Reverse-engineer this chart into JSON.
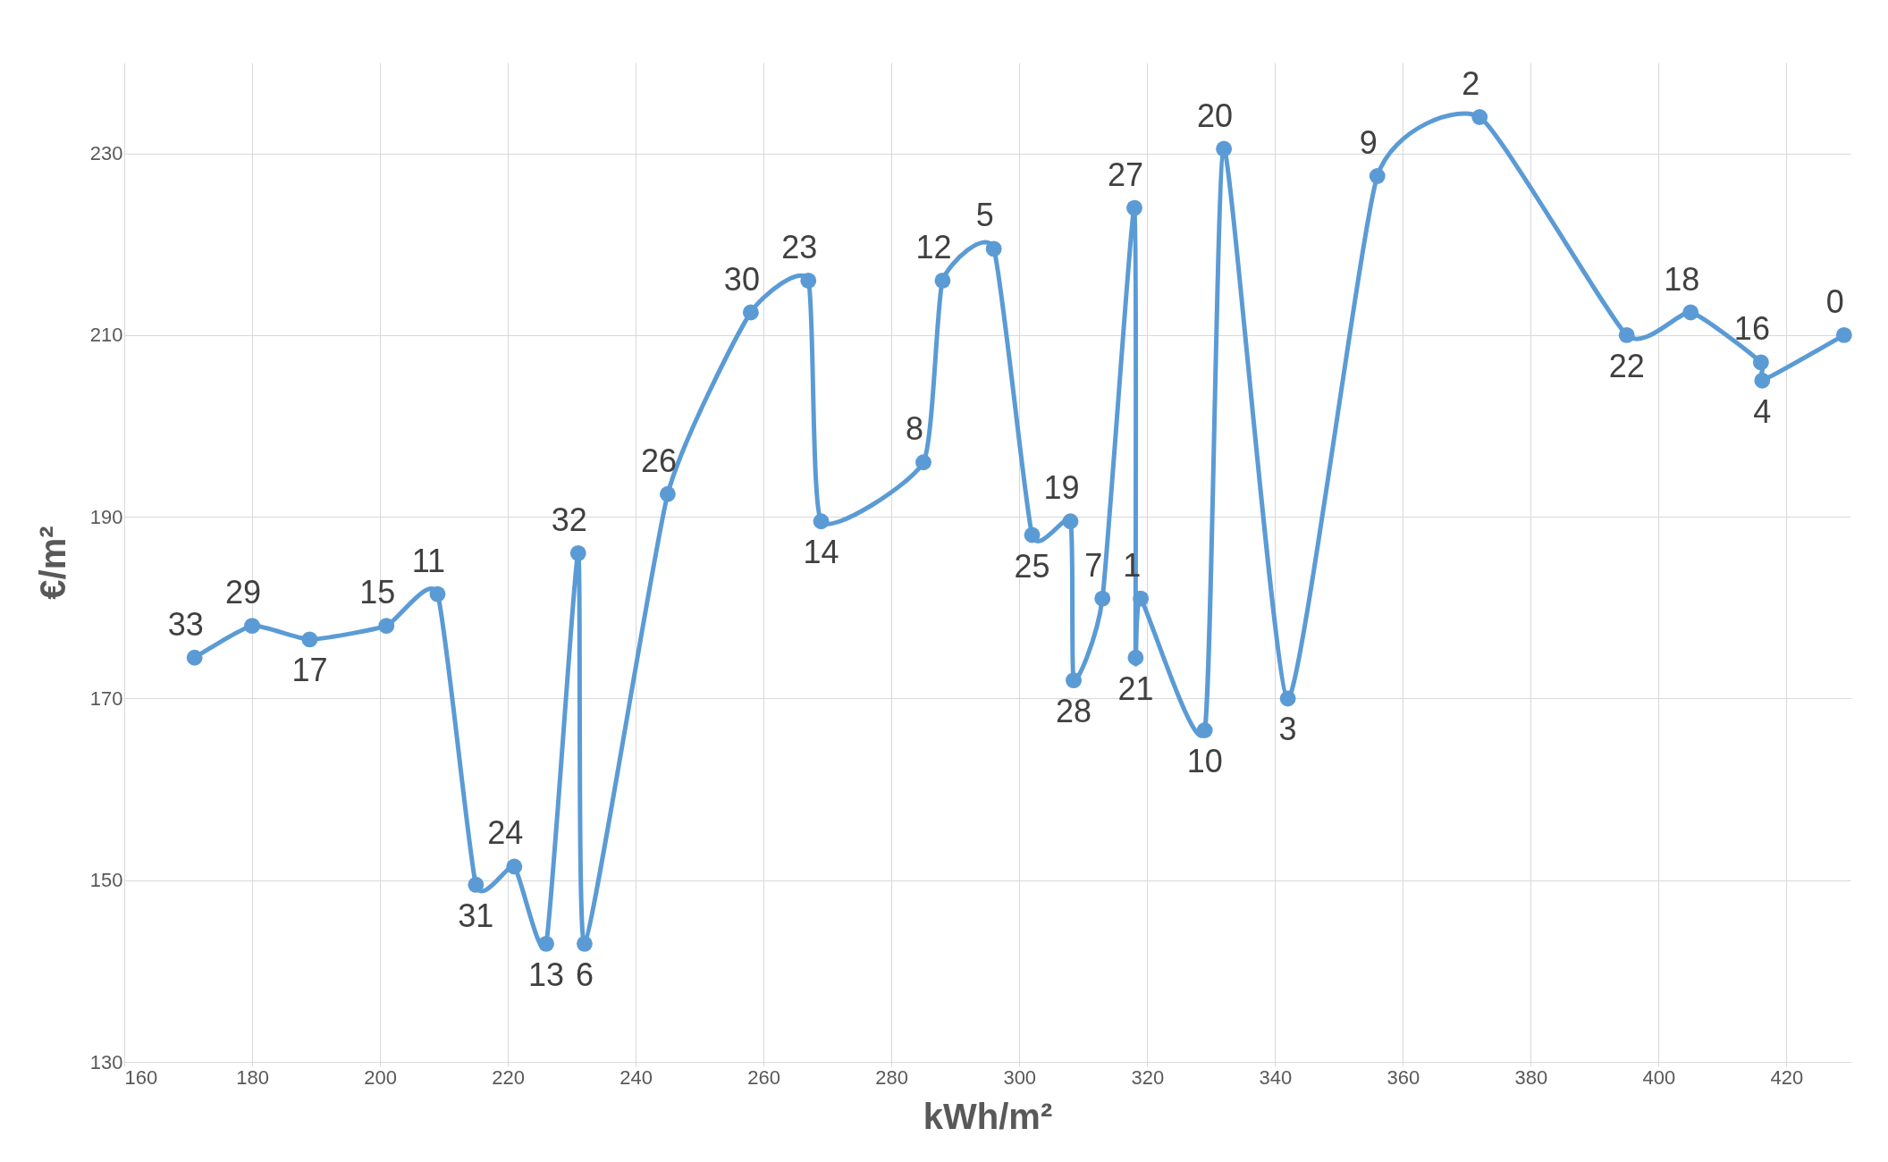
{
  "chart_data": {
    "type": "line",
    "xlabel": "kWh/m²",
    "ylabel": "€/m²",
    "x": [
      171,
      180,
      189,
      201,
      209,
      215,
      221,
      226,
      231,
      232,
      245,
      258,
      267,
      269,
      285,
      288,
      296,
      302,
      308,
      308.5,
      313,
      318,
      318.2,
      319,
      329,
      332,
      342,
      356,
      372,
      395,
      405,
      416,
      416.2,
      429
    ],
    "series": [
      {
        "color": "#5b9bd5",
        "values": [
          174.5,
          178,
          176.5,
          178,
          181.5,
          149.5,
          151.5,
          143,
          186,
          143,
          192.5,
          212.5,
          216,
          189.5,
          196,
          216,
          219.5,
          188,
          189.5,
          172,
          181,
          224,
          174.5,
          181,
          166.5,
          230.5,
          170,
          227.5,
          234,
          210,
          212.5,
          207,
          205,
          210
        ]
      }
    ],
    "annotations": [
      {
        "text": "33",
        "x": 171,
        "y": 174.5
      },
      {
        "text": "29",
        "x": 180,
        "y": 178
      },
      {
        "text": "17",
        "x": 189,
        "y": 176.5
      },
      {
        "text": "15",
        "x": 201,
        "y": 178
      },
      {
        "text": "11",
        "x": 209,
        "y": 181.5
      },
      {
        "text": "31",
        "x": 215,
        "y": 149.5
      },
      {
        "text": "24",
        "x": 221,
        "y": 151.5
      },
      {
        "text": "13",
        "x": 226,
        "y": 143
      },
      {
        "text": "32",
        "x": 231,
        "y": 186
      },
      {
        "text": "6",
        "x": 232,
        "y": 143
      },
      {
        "text": "26",
        "x": 245,
        "y": 192.5
      },
      {
        "text": "30",
        "x": 258,
        "y": 212.5
      },
      {
        "text": "23",
        "x": 267,
        "y": 216
      },
      {
        "text": "14",
        "x": 269,
        "y": 189.5
      },
      {
        "text": "8",
        "x": 285,
        "y": 196
      },
      {
        "text": "12",
        "x": 288,
        "y": 216
      },
      {
        "text": "5",
        "x": 296,
        "y": 219.5
      },
      {
        "text": "25",
        "x": 302,
        "y": 188
      },
      {
        "text": "19",
        "x": 308,
        "y": 189.5
      },
      {
        "text": "28",
        "x": 308.5,
        "y": 172
      },
      {
        "text": "7",
        "x": 313,
        "y": 181
      },
      {
        "text": "27",
        "x": 318,
        "y": 224
      },
      {
        "text": "21",
        "x": 318.2,
        "y": 174.5
      },
      {
        "text": "1",
        "x": 319,
        "y": 181
      },
      {
        "text": "10",
        "x": 329,
        "y": 166.5
      },
      {
        "text": "20",
        "x": 332,
        "y": 230.5
      },
      {
        "text": "3",
        "x": 342,
        "y": 170
      },
      {
        "text": "9",
        "x": 356,
        "y": 227.5
      },
      {
        "text": "2",
        "x": 372,
        "y": 234
      },
      {
        "text": "22",
        "x": 395,
        "y": 210
      },
      {
        "text": "18",
        "x": 405,
        "y": 212.5
      },
      {
        "text": "16",
        "x": 416,
        "y": 207
      },
      {
        "text": "4",
        "x": 416.2,
        "y": 205
      },
      {
        "text": "0",
        "x": 429,
        "y": 210
      }
    ],
    "xlim": [
      160,
      430
    ],
    "xticks": [
      160,
      180,
      200,
      220,
      240,
      260,
      280,
      300,
      320,
      340,
      360,
      380,
      400,
      420
    ],
    "ylim": [
      130,
      240
    ],
    "yticks": [
      130,
      150,
      170,
      190,
      210,
      230
    ],
    "grid": true,
    "marker": "circle",
    "line_style": "solid"
  }
}
